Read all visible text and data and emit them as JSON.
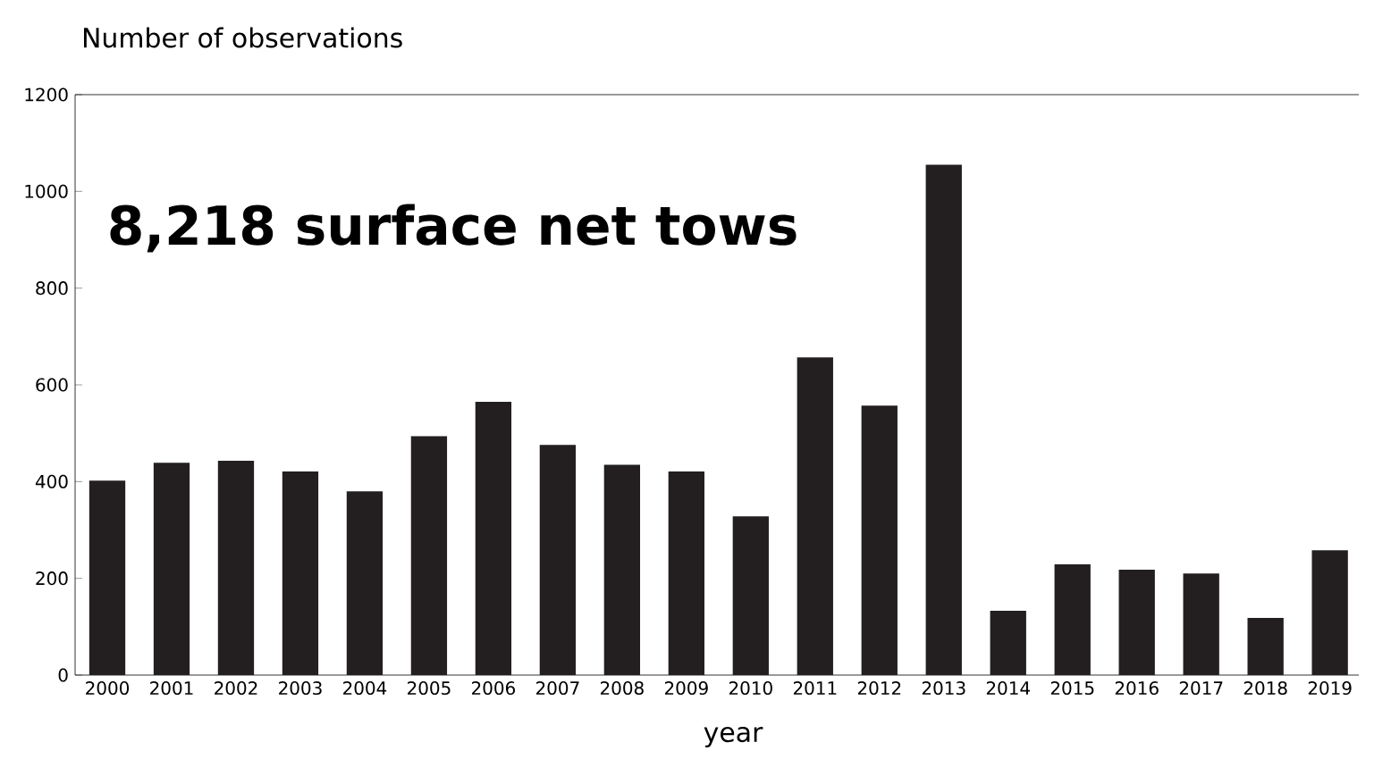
{
  "chart_data": {
    "type": "bar",
    "ylabel": "Number of observations",
    "xlabel": "year",
    "annotations": [
      "8,218 surface net tows"
    ],
    "categories": [
      "2000",
      "2001",
      "2002",
      "2003",
      "2004",
      "2005",
      "2006",
      "2007",
      "2008",
      "2009",
      "2010",
      "2011",
      "2012",
      "2013",
      "2014",
      "2015",
      "2016",
      "2017",
      "2018",
      "2019"
    ],
    "values": [
      402,
      439,
      443,
      421,
      380,
      494,
      565,
      476,
      435,
      421,
      328,
      657,
      557,
      1055,
      133,
      229,
      218,
      210,
      118,
      258
    ],
    "color": "#231f20",
    "ylim": [
      0,
      1200
    ],
    "yticks": [
      0,
      200,
      400,
      600,
      800,
      1000,
      1200
    ]
  }
}
